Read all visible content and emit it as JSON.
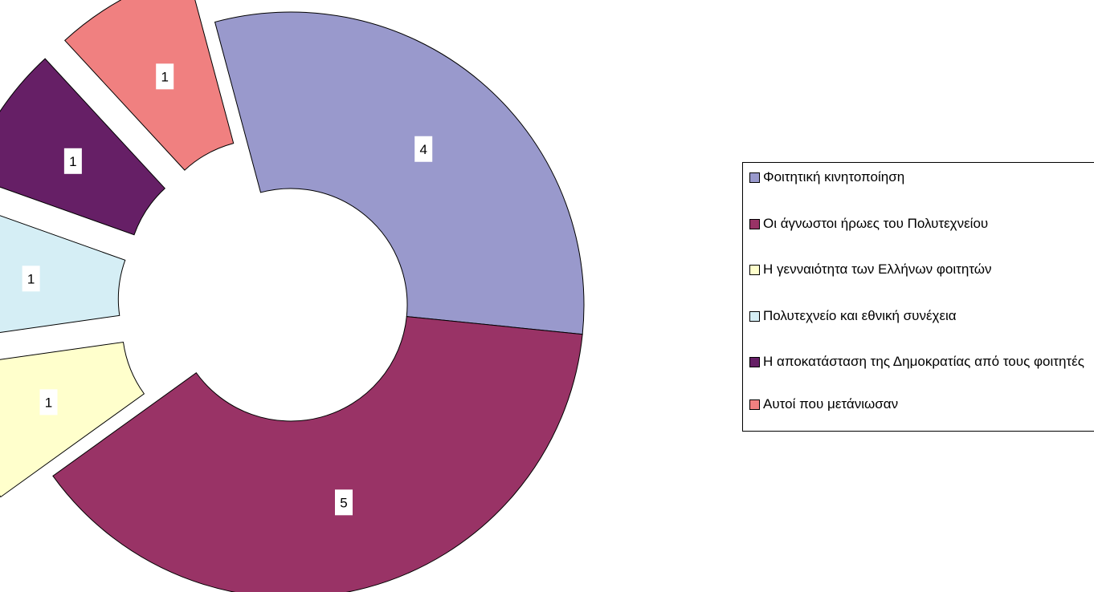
{
  "chart_data": {
    "type": "pie",
    "subtype": "exploded-doughnut",
    "categories": [
      "Φοιτητική κινητοποίηση",
      "Οι άγνωστοι ήρωες του Πολυτεχνείου",
      "Η γενναιότητα των Ελλήνων φοιτητών",
      "Πολυτεχνείο και εθνική συνέχεια",
      "Η αποκατάσταση της Δημοκρατίας από τους φοιτητές",
      "Αυτοί που μετάνιωσαν"
    ],
    "values": [
      4,
      5,
      1,
      1,
      1,
      1
    ],
    "data_labels": [
      "4",
      "5",
      "1",
      "1",
      "1",
      "1"
    ],
    "colors": [
      "#9999cc",
      "#993366",
      "#ffffcc",
      "#d5eef5",
      "#661f66",
      "#f08080"
    ],
    "legend_position": "right",
    "title": ""
  }
}
